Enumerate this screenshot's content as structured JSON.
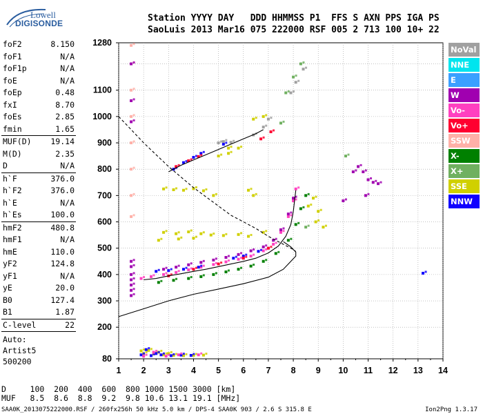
{
  "logo": {
    "line1": "Lowell",
    "line2": "DIGISONDE"
  },
  "header": {
    "labels": "Station YYYY DAY   DDD HHMMSS P1  FFS S AXN PPS IGA PS",
    "values": "SaoLuis 2013 Mar16 075 222000 RSF 005 2 713 100 10+ 22"
  },
  "params": {
    "group1": [
      {
        "k": "foF2",
        "v": "8.150"
      },
      {
        "k": "foF1",
        "v": "N/A"
      },
      {
        "k": "foF1p",
        "v": "N/A"
      },
      {
        "k": "foE",
        "v": "N/A"
      },
      {
        "k": "foEp",
        "v": "0.48"
      },
      {
        "k": "fxI",
        "v": "8.70"
      },
      {
        "k": "foEs",
        "v": "2.85"
      },
      {
        "k": "fmin",
        "v": "1.65"
      }
    ],
    "group2": [
      {
        "k": "MUF(D)",
        "v": "19.14"
      },
      {
        "k": "M(D)",
        "v": "2.35"
      },
      {
        "k": "D",
        "v": "N/A"
      }
    ],
    "group3": [
      {
        "k": "h`F",
        "v": "376.0"
      },
      {
        "k": "h`F2",
        "v": "376.0"
      },
      {
        "k": "h`E",
        "v": "N/A"
      },
      {
        "k": "h`Es",
        "v": "100.0"
      }
    ],
    "group4": [
      {
        "k": "hmF2",
        "v": "480.8"
      },
      {
        "k": "hmF1",
        "v": "N/A"
      },
      {
        "k": "hmE",
        "v": "110.0"
      },
      {
        "k": "yF2",
        "v": "124.8"
      },
      {
        "k": "yF1",
        "v": "N/A"
      },
      {
        "k": "yE",
        "v": "20.0"
      },
      {
        "k": "B0",
        "v": "127.4"
      },
      {
        "k": "B1",
        "v": "1.87"
      }
    ],
    "group5": [
      {
        "k": "C-level",
        "v": "22"
      }
    ],
    "group6": [
      "Auto:",
      "Artist5",
      "500200"
    ]
  },
  "legend": [
    {
      "label": "NoVal",
      "color": "#a0a0a0"
    },
    {
      "label": "NNE",
      "color": "#00e5ee"
    },
    {
      "label": "E",
      "color": "#3aa0ff"
    },
    {
      "label": "W",
      "color": "#a000b0"
    },
    {
      "label": "Vo-",
      "color": "#ff40c0"
    },
    {
      "label": "Vo+",
      "color": "#ff0030"
    },
    {
      "label": "SSW",
      "color": "#ffb0a8"
    },
    {
      "label": "X-",
      "color": "#008000"
    },
    {
      "label": "X+",
      "color": "#70b060"
    },
    {
      "label": "SSE",
      "color": "#d0d000"
    },
    {
      "label": "NNW",
      "color": "#1000ff"
    }
  ],
  "bottom": {
    "d_line": "D     100  200  400  600  800 1000 1500 3000 [km]",
    "muf_line": "MUF   8.5  8.6  8.8  9.2  9.8 10.6 13.1 19.1 [MHz]"
  },
  "footer": {
    "left": "SAA0K_2013075222000.RSF / 260fx256h 50 kHz 5.0 km / DPS-4 SAA0K 903 / 2.6 S 315.8 E",
    "right": "Ion2Png 1.3.17"
  },
  "chart_data": {
    "type": "scatter",
    "xlim": [
      1,
      14
    ],
    "ylim": [
      80,
      1280
    ],
    "x_ticks": [
      "1",
      "2",
      "3",
      "4",
      "5",
      "6",
      "7",
      "8",
      "9",
      "10",
      "11",
      "12",
      "13",
      "14"
    ],
    "y_ticks": [
      "80",
      "200",
      "300",
      "400",
      "500",
      "600",
      "700",
      "800",
      "900",
      "1000",
      "1100",
      "1280"
    ],
    "grid": true,
    "series": [
      {
        "color": "#ff40c0",
        "points": [
          [
            1.9,
            385
          ],
          [
            2.3,
            392
          ],
          [
            2.8,
            400
          ],
          [
            3.3,
            408
          ],
          [
            3.8,
            418
          ],
          [
            4.3,
            428
          ],
          [
            4.8,
            438
          ],
          [
            5.3,
            448
          ],
          [
            5.8,
            458
          ],
          [
            6.3,
            470
          ],
          [
            6.8,
            490
          ],
          [
            7.2,
            515
          ],
          [
            7.5,
            560
          ],
          [
            7.8,
            620
          ],
          [
            8.0,
            680
          ],
          [
            8.1,
            725
          ]
        ]
      },
      {
        "color": "#a000b0",
        "points": [
          [
            2.8,
            420
          ],
          [
            3.3,
            428
          ],
          [
            3.8,
            437
          ],
          [
            4.3,
            446
          ],
          [
            4.8,
            455
          ],
          [
            5.3,
            465
          ],
          [
            5.8,
            476
          ],
          [
            6.3,
            490
          ],
          [
            6.8,
            505
          ],
          [
            7.2,
            530
          ],
          [
            7.5,
            570
          ],
          [
            7.8,
            630
          ],
          [
            8.0,
            690
          ]
        ]
      },
      {
        "color": "#008000",
        "points": [
          [
            2.6,
            370
          ],
          [
            3.2,
            378
          ],
          [
            3.8,
            385
          ],
          [
            4.3,
            392
          ],
          [
            4.8,
            400
          ],
          [
            5.3,
            410
          ],
          [
            5.8,
            420
          ],
          [
            6.3,
            432
          ],
          [
            6.8,
            450
          ],
          [
            7.3,
            480
          ],
          [
            7.8,
            530
          ],
          [
            8.1,
            590
          ],
          [
            8.3,
            650
          ],
          [
            8.5,
            700
          ]
        ]
      },
      {
        "color": "#1000ff",
        "points": [
          [
            2.5,
            412
          ],
          [
            3.0,
            415
          ],
          [
            3.6,
            420
          ],
          [
            4.2,
            428
          ],
          [
            5.6,
            462
          ],
          [
            6.0,
            470
          ],
          [
            6.6,
            488
          ],
          [
            3.2,
            800
          ],
          [
            3.6,
            825
          ],
          [
            4.0,
            845
          ],
          [
            4.3,
            860
          ],
          [
            5.2,
            895
          ]
        ]
      },
      {
        "color": "#ff0030",
        "points": [
          [
            3.0,
            395
          ],
          [
            4.0,
            420
          ],
          [
            5.0,
            440
          ],
          [
            6.0,
            462
          ],
          [
            7.0,
            500
          ],
          [
            3.3,
            810
          ],
          [
            3.8,
            832
          ],
          [
            4.2,
            848
          ],
          [
            6.7,
            915
          ],
          [
            7.1,
            942
          ]
        ]
      },
      {
        "color": "#d0d000",
        "points": [
          [
            2.8,
            725
          ],
          [
            3.2,
            722
          ],
          [
            3.6,
            720
          ],
          [
            4.0,
            726
          ],
          [
            4.4,
            718
          ],
          [
            2.8,
            560
          ],
          [
            3.3,
            555
          ],
          [
            3.8,
            562
          ],
          [
            4.3,
            555
          ],
          [
            4.7,
            550
          ],
          [
            2.6,
            530
          ],
          [
            3.4,
            535
          ],
          [
            4.0,
            538
          ],
          [
            5.2,
            548
          ],
          [
            5.8,
            552
          ],
          [
            6.2,
            545
          ],
          [
            6.8,
            560
          ],
          [
            5.0,
            850
          ],
          [
            5.4,
            860
          ],
          [
            5.8,
            880
          ],
          [
            6.2,
            720
          ],
          [
            6.4,
            700
          ],
          [
            8.6,
            660
          ],
          [
            8.8,
            690
          ],
          [
            9.0,
            640
          ],
          [
            8.9,
            600
          ],
          [
            9.2,
            580
          ],
          [
            4.8,
            700
          ],
          [
            5.4,
            880
          ],
          [
            6.4,
            990
          ],
          [
            6.8,
            1000
          ]
        ]
      },
      {
        "color": "#a0a0a0",
        "points": [
          [
            5.0,
            900
          ],
          [
            5.2,
            905
          ],
          [
            5.5,
            902
          ],
          [
            6.4,
            930
          ],
          [
            6.8,
            960
          ],
          [
            7.0,
            990
          ],
          [
            7.9,
            1090
          ],
          [
            8.1,
            1130
          ],
          [
            8.4,
            1180
          ]
        ]
      },
      {
        "color": "#70b060",
        "points": [
          [
            7.7,
            1090
          ],
          [
            8.0,
            1150
          ],
          [
            8.3,
            1200
          ],
          [
            7.5,
            975
          ],
          [
            8.5,
            580
          ],
          [
            10.1,
            850
          ]
        ]
      },
      {
        "color": "#ffb0a8",
        "points": [
          [
            1.5,
            1270
          ],
          [
            1.5,
            1200
          ],
          [
            1.5,
            1100
          ],
          [
            1.5,
            1000
          ],
          [
            1.5,
            900
          ],
          [
            1.5,
            800
          ],
          [
            1.5,
            700
          ],
          [
            1.5,
            620
          ]
        ]
      },
      {
        "color": "#a000b0",
        "points": [
          [
            1.5,
            1200
          ],
          [
            1.5,
            1060
          ],
          [
            1.5,
            980
          ],
          [
            1.5,
            450
          ],
          [
            1.5,
            430
          ],
          [
            1.5,
            400
          ],
          [
            1.5,
            380
          ],
          [
            1.5,
            360
          ],
          [
            1.5,
            340
          ],
          [
            1.5,
            320
          ],
          [
            10.6,
            810
          ],
          [
            10.8,
            790
          ],
          [
            11.0,
            760
          ],
          [
            11.2,
            750
          ],
          [
            11.4,
            745
          ],
          [
            10.4,
            790
          ],
          [
            10.9,
            700
          ],
          [
            10.0,
            680
          ]
        ]
      },
      {
        "color": "#d0d000",
        "points": [
          [
            2.0,
            100
          ],
          [
            2.4,
            98
          ],
          [
            2.8,
            95
          ],
          [
            3.2,
            93
          ],
          [
            3.6,
            92
          ],
          [
            4.0,
            93
          ],
          [
            4.4,
            94
          ],
          [
            1.9,
            110
          ],
          [
            2.2,
            112
          ],
          [
            2.6,
            105
          ],
          [
            3.0,
            100
          ]
        ]
      },
      {
        "color": "#1000ff",
        "points": [
          [
            1.9,
            95
          ],
          [
            2.3,
            92
          ],
          [
            2.7,
            95
          ],
          [
            3.1,
            92
          ],
          [
            3.5,
            94
          ],
          [
            3.9,
            93
          ],
          [
            2.1,
            115
          ],
          [
            2.5,
            100
          ],
          [
            13.2,
            405
          ]
        ]
      },
      {
        "color": "#ff40c0",
        "points": [
          [
            2.0,
            90
          ],
          [
            2.4,
            105
          ],
          [
            2.9,
            90
          ],
          [
            3.4,
            95
          ],
          [
            4.2,
            95
          ]
        ]
      }
    ],
    "curves": [
      {
        "style": "solid",
        "points": [
          [
            1.0,
            240
          ],
          [
            2.0,
            270
          ],
          [
            3.0,
            300
          ],
          [
            4.0,
            325
          ],
          [
            5.0,
            345
          ],
          [
            6.0,
            365
          ],
          [
            7.0,
            390
          ],
          [
            7.6,
            420
          ],
          [
            7.9,
            450
          ],
          [
            8.1,
            470
          ],
          [
            8.1,
            485
          ],
          [
            7.9,
            505
          ],
          [
            7.6,
            525
          ]
        ]
      },
      {
        "style": "dashed",
        "points": [
          [
            1.0,
            1000
          ],
          [
            1.5,
            950
          ],
          [
            2.0,
            900
          ],
          [
            2.5,
            855
          ],
          [
            3.0,
            810
          ],
          [
            3.5,
            770
          ],
          [
            4.0,
            730
          ],
          [
            4.5,
            695
          ],
          [
            5.0,
            660
          ],
          [
            5.5,
            625
          ],
          [
            6.0,
            600
          ],
          [
            6.5,
            575
          ],
          [
            7.0,
            545
          ],
          [
            7.5,
            520
          ],
          [
            7.9,
            500
          ],
          [
            8.1,
            488
          ]
        ]
      },
      {
        "style": "solid",
        "points": [
          [
            2.0,
            380
          ],
          [
            2.5,
            385
          ],
          [
            3.0,
            395
          ],
          [
            3.5,
            403
          ],
          [
            4.0,
            412
          ],
          [
            4.5,
            420
          ],
          [
            5.0,
            430
          ],
          [
            5.5,
            440
          ],
          [
            6.0,
            450
          ],
          [
            6.5,
            462
          ],
          [
            7.0,
            482
          ],
          [
            7.4,
            508
          ],
          [
            7.7,
            545
          ],
          [
            7.9,
            590
          ],
          [
            8.0,
            640
          ],
          [
            8.05,
            680
          ],
          [
            8.1,
            720
          ]
        ]
      },
      {
        "style": "solid",
        "points": [
          [
            3.0,
            790
          ],
          [
            3.5,
            815
          ],
          [
            4.0,
            835
          ],
          [
            4.5,
            855
          ],
          [
            5.0,
            875
          ],
          [
            5.5,
            895
          ],
          [
            6.0,
            915
          ],
          [
            6.5,
            935
          ],
          [
            6.8,
            950
          ]
        ]
      }
    ]
  }
}
